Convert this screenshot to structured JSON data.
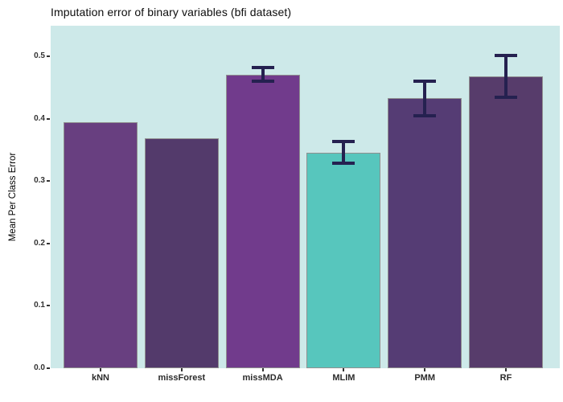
{
  "figure": {
    "title": "Imputation error of binary variables (bfi dataset)"
  },
  "chart_data": {
    "type": "bar",
    "title": "Imputation error of binary variables (bfi dataset)",
    "xlabel": "",
    "ylabel": "Mean Per Class Error",
    "categories": [
      "kNN",
      "missForest",
      "missMDA",
      "MLIM",
      "PMM",
      "RF"
    ],
    "values": [
      0.394,
      0.368,
      0.47,
      0.346,
      0.433,
      0.468
    ],
    "error_low": [
      null,
      null,
      0.457,
      0.326,
      0.402,
      0.432
    ],
    "error_high": [
      null,
      null,
      0.484,
      0.366,
      0.463,
      0.504
    ],
    "bar_colors": [
      "#683f80",
      "#533a6b",
      "#713b8c",
      "#57c6bd",
      "#553c74",
      "#573c6b"
    ],
    "bar_border_color": "#909090",
    "errorbar_color": "#252150",
    "panel_background": "#cde9e9",
    "outer_background": "#ffffff",
    "ylim": [
      0,
      0.549
    ],
    "ytick_labels": [
      "0.0",
      "0.1",
      "0.2",
      "0.3",
      "0.4",
      "0.5"
    ],
    "ytick_values": [
      0.0,
      0.1,
      0.2,
      0.3,
      0.4,
      0.5
    ],
    "grid": false,
    "legend": false
  }
}
